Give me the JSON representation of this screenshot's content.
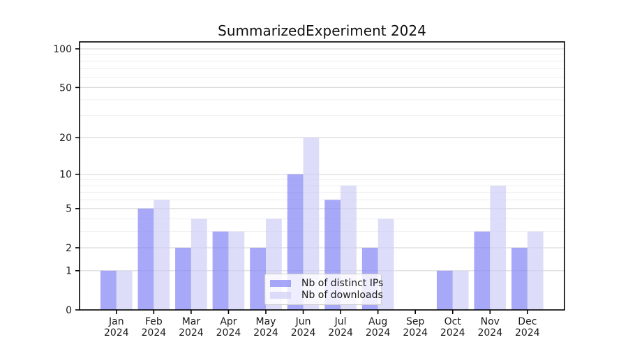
{
  "chart_data": {
    "type": "bar",
    "title": "SummarizedExperiment 2024",
    "year": "2024",
    "months": [
      "Jan",
      "Feb",
      "Mar",
      "Apr",
      "May",
      "Jun",
      "Jul",
      "Aug",
      "Sep",
      "Oct",
      "Nov",
      "Dec"
    ],
    "series": [
      {
        "name": "Nb of distinct IPs",
        "color": "#8383f5",
        "opacity": 0.7,
        "values": [
          1,
          5,
          2,
          3,
          2,
          10,
          6,
          2,
          0,
          1,
          3,
          2
        ]
      },
      {
        "name": "Nb of downloads",
        "color": "#cecef6",
        "opacity": 0.7,
        "values": [
          1,
          6,
          4,
          3,
          4,
          20,
          8,
          4,
          0,
          1,
          8,
          3
        ]
      }
    ],
    "yscale": "log1p",
    "ylim": [
      0,
      100
    ],
    "yticks_major": [
      0,
      1,
      2,
      5,
      10,
      20,
      50,
      100
    ],
    "yticks_minor": [
      3,
      4,
      6,
      7,
      8,
      9,
      30,
      40,
      60,
      70,
      80,
      90
    ],
    "grid": {
      "major_color": "#d9d9d9",
      "minor_color": "#efefef"
    },
    "axis_color": "#000000",
    "tick_label_color": "#1a1a1a",
    "legend_position": "bottom-center"
  }
}
